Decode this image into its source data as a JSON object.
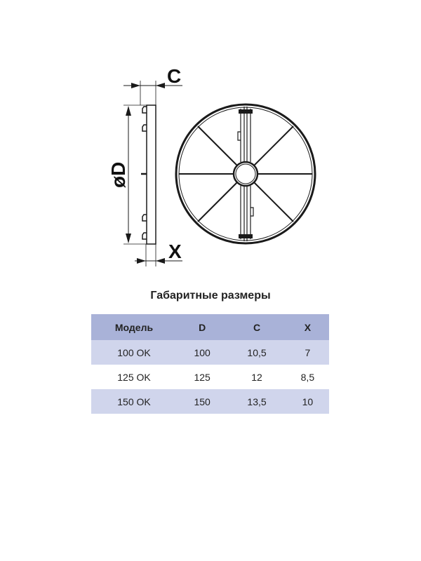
{
  "drawing": {
    "labels": {
      "c": "C",
      "d": "øD",
      "x": "X"
    },
    "line_color": "#1a1a1a"
  },
  "table": {
    "title": "Габаритные размеры",
    "headers": [
      "Модель",
      "D",
      "C",
      "X"
    ],
    "rows": [
      [
        "100 OK",
        "100",
        "10,5",
        "7"
      ],
      [
        "125 OK",
        "125",
        "12",
        "8,5"
      ],
      [
        "150 OK",
        "150",
        "13,5",
        "10"
      ]
    ],
    "header_color": "#a9b2d8",
    "stripe_color": "#d0d5ec"
  }
}
